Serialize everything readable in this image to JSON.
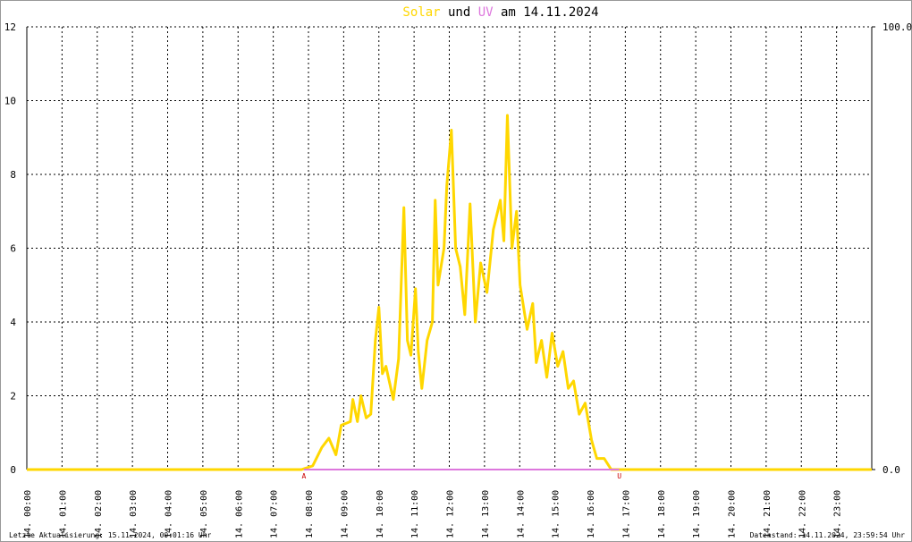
{
  "chart_data": {
    "type": "line",
    "title": {
      "parts": [
        {
          "text": "Solar",
          "color": "#ffd700"
        },
        {
          "text": " und ",
          "color": "#000000"
        },
        {
          "text": "UV",
          "color": "#dd77dd"
        },
        {
          "text": " am 14.11.2024",
          "color": "#000000"
        }
      ]
    },
    "xlim": [
      0,
      24
    ],
    "xticks": [
      {
        "value": 0,
        "label": "14. 00:00"
      },
      {
        "value": 1,
        "label": "14. 01:00"
      },
      {
        "value": 2,
        "label": "14. 02:00"
      },
      {
        "value": 3,
        "label": "14. 03:00"
      },
      {
        "value": 4,
        "label": "14. 04:00"
      },
      {
        "value": 5,
        "label": "14. 05:00"
      },
      {
        "value": 6,
        "label": "14. 06:00"
      },
      {
        "value": 7,
        "label": "14. 07:00"
      },
      {
        "value": 8,
        "label": "14. 08:00"
      },
      {
        "value": 9,
        "label": "14. 09:00"
      },
      {
        "value": 10,
        "label": "14. 10:00"
      },
      {
        "value": 11,
        "label": "14. 11:00"
      },
      {
        "value": 12,
        "label": "14. 12:00"
      },
      {
        "value": 13,
        "label": "14. 13:00"
      },
      {
        "value": 14,
        "label": "14. 14:00"
      },
      {
        "value": 15,
        "label": "14. 15:00"
      },
      {
        "value": 16,
        "label": "14. 16:00"
      },
      {
        "value": 17,
        "label": "14. 17:00"
      },
      {
        "value": 18,
        "label": "14. 18:00"
      },
      {
        "value": 19,
        "label": "14. 19:00"
      },
      {
        "value": 20,
        "label": "14. 20:00"
      },
      {
        "value": 21,
        "label": "14. 21:00"
      },
      {
        "value": 22,
        "label": "14. 22:00"
      },
      {
        "value": 23,
        "label": "14. 23:00"
      }
    ],
    "ylim": [
      0,
      12
    ],
    "yticks": [
      0,
      2,
      4,
      6,
      8,
      10,
      12
    ],
    "y2lim": [
      0,
      100
    ],
    "y2ticks": [
      {
        "value": 0,
        "label": "0.0"
      },
      {
        "value": 100,
        "label": "100.0"
      }
    ],
    "grid": true,
    "series": [
      {
        "name": "Solar",
        "color": "#ffd700",
        "x": [
          0,
          7.8,
          8.12,
          8.38,
          8.58,
          8.78,
          8.93,
          9.19,
          9.26,
          9.39,
          9.49,
          9.64,
          9.77,
          9.9,
          10.0,
          10.1,
          10.2,
          10.41,
          10.56,
          10.71,
          10.81,
          10.91,
          11.04,
          11.12,
          11.22,
          11.37,
          11.52,
          11.6,
          11.68,
          11.85,
          11.93,
          12.06,
          12.18,
          12.31,
          12.44,
          12.59,
          12.74,
          12.89,
          13.07,
          13.25,
          13.45,
          13.55,
          13.65,
          13.78,
          13.91,
          14.01,
          14.21,
          14.37,
          14.47,
          14.62,
          14.77,
          14.92,
          15.08,
          15.23,
          15.38,
          15.53,
          15.69,
          15.86,
          16.04,
          16.19,
          16.4,
          16.6,
          24
        ],
        "values": [
          0,
          0,
          0.1,
          0.6,
          0.85,
          0.4,
          1.2,
          1.3,
          1.9,
          1.3,
          2.0,
          1.4,
          1.5,
          3.5,
          4.4,
          2.6,
          2.8,
          1.9,
          3.0,
          7.1,
          3.5,
          3.1,
          4.9,
          3.2,
          2.2,
          3.5,
          4.0,
          7.3,
          5.0,
          6.0,
          7.7,
          9.2,
          6.0,
          5.5,
          4.2,
          7.2,
          4.0,
          5.6,
          4.8,
          6.5,
          7.3,
          6.2,
          9.6,
          6.0,
          7.0,
          5.0,
          3.8,
          4.5,
          2.9,
          3.5,
          2.5,
          3.7,
          2.8,
          3.2,
          2.2,
          2.4,
          1.5,
          1.8,
          0.8,
          0.3,
          0.3,
          0,
          0
        ]
      },
      {
        "name": "UV",
        "color": "#dd77dd",
        "axis": "y2",
        "x": [
          7.87,
          16.83
        ],
        "values": [
          0,
          0
        ]
      }
    ],
    "annotations": [
      {
        "text": "A",
        "x": 7.87,
        "color": "#cc0000"
      },
      {
        "text": "U",
        "x": 16.83,
        "color": "#cc0000"
      }
    ],
    "footer_left": "Letzte Aktualisierung: 15.11.2024, 00:01:16 Uhr",
    "footer_right": "Datenstand: 14.11.2024, 23:59:54 Uhr"
  }
}
